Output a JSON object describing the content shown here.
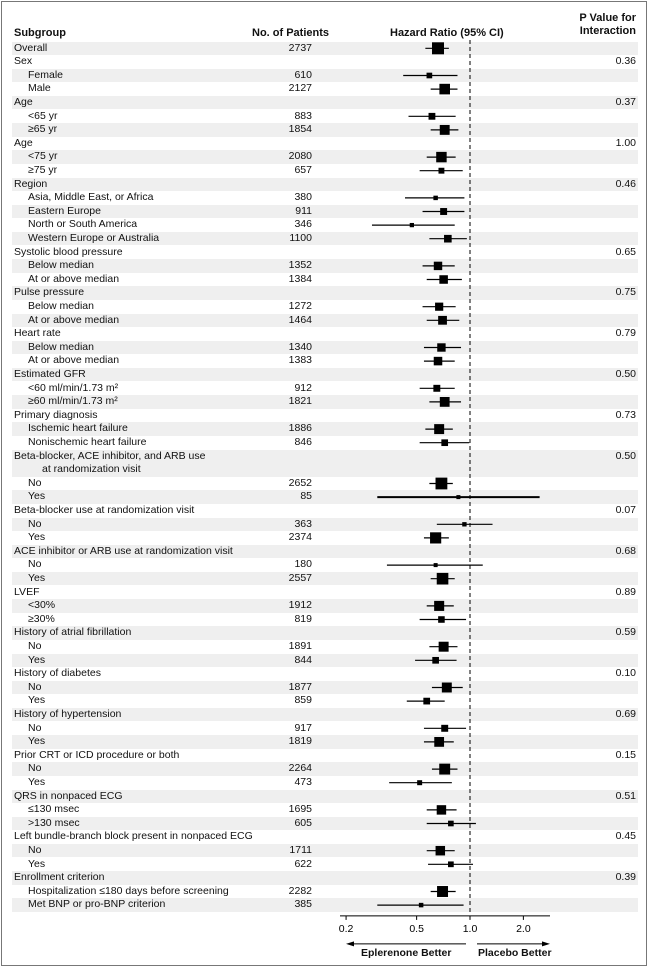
{
  "header": {
    "subgroup": "Subgroup",
    "patients": "No. of Patients",
    "hr": "Hazard Ratio (95% CI)",
    "p_line1": "P Value for",
    "p_line2": "Interaction"
  },
  "chart_data": {
    "type": "forest",
    "xscale": "log",
    "xticks": [
      "0.2",
      "0.5",
      "1.0",
      "2.0"
    ],
    "xtick_values": [
      0.2,
      0.5,
      1.0,
      2.0
    ],
    "reference_line": 1.0,
    "left_label": "Eplerenone Better",
    "right_label": "Placebo Better",
    "rows": [
      {
        "label": "Overall",
        "indent": 0,
        "n": "2737",
        "hr": 0.66,
        "lo": 0.56,
        "hi": 0.76
      },
      {
        "label": "Sex",
        "indent": 0,
        "p": "0.36"
      },
      {
        "label": "Female",
        "indent": 1,
        "n": "610",
        "hr": 0.59,
        "lo": 0.42,
        "hi": 0.85
      },
      {
        "label": "Male",
        "indent": 1,
        "n": "2127",
        "hr": 0.72,
        "lo": 0.6,
        "hi": 0.85
      },
      {
        "label": "Age",
        "indent": 0,
        "p": "0.37"
      },
      {
        "label": "<65 yr",
        "indent": 1,
        "n": "883",
        "hr": 0.61,
        "lo": 0.45,
        "hi": 0.83
      },
      {
        "label": "≥65 yr",
        "indent": 1,
        "n": "1854",
        "hr": 0.72,
        "lo": 0.6,
        "hi": 0.86
      },
      {
        "label": "Age",
        "indent": 0,
        "p": "1.00"
      },
      {
        "label": "<75 yr",
        "indent": 1,
        "n": "2080",
        "hr": 0.69,
        "lo": 0.57,
        "hi": 0.83
      },
      {
        "label": "≥75 yr",
        "indent": 1,
        "n": "657",
        "hr": 0.69,
        "lo": 0.52,
        "hi": 0.91
      },
      {
        "label": "Region",
        "indent": 0,
        "p": "0.46"
      },
      {
        "label": "Asia, Middle East, or Africa",
        "indent": 1,
        "n": "380",
        "hr": 0.64,
        "lo": 0.43,
        "hi": 0.93
      },
      {
        "label": "Eastern Europe",
        "indent": 1,
        "n": "911",
        "hr": 0.71,
        "lo": 0.54,
        "hi": 0.93
      },
      {
        "label": "North or South America",
        "indent": 1,
        "n": "346",
        "hr": 0.47,
        "lo": 0.28,
        "hi": 0.82
      },
      {
        "label": "Western Europe or Australia",
        "indent": 1,
        "n": "1100",
        "hr": 0.75,
        "lo": 0.59,
        "hi": 0.96
      },
      {
        "label": "Systolic blood pressure",
        "indent": 0,
        "p": "0.65"
      },
      {
        "label": "Below median",
        "indent": 1,
        "n": "1352",
        "hr": 0.66,
        "lo": 0.54,
        "hi": 0.82
      },
      {
        "label": "At or above median",
        "indent": 1,
        "n": "1384",
        "hr": 0.71,
        "lo": 0.57,
        "hi": 0.9
      },
      {
        "label": "Pulse pressure",
        "indent": 0,
        "p": "0.75"
      },
      {
        "label": "Below median",
        "indent": 1,
        "n": "1272",
        "hr": 0.67,
        "lo": 0.54,
        "hi": 0.83
      },
      {
        "label": "At or above median",
        "indent": 1,
        "n": "1464",
        "hr": 0.7,
        "lo": 0.57,
        "hi": 0.87
      },
      {
        "label": "Heart rate",
        "indent": 0,
        "p": "0.79"
      },
      {
        "label": "Below median",
        "indent": 1,
        "n": "1340",
        "hr": 0.69,
        "lo": 0.55,
        "hi": 0.89
      },
      {
        "label": "At or above median",
        "indent": 1,
        "n": "1383",
        "hr": 0.66,
        "lo": 0.55,
        "hi": 0.82
      },
      {
        "label": "Estimated GFR",
        "indent": 0,
        "p": "0.50"
      },
      {
        "label": "<60 ml/min/1.73 m²",
        "indent": 1,
        "n": "912",
        "hr": 0.65,
        "lo": 0.52,
        "hi": 0.82
      },
      {
        "label": "≥60 ml/min/1.73 m²",
        "indent": 1,
        "n": "1821",
        "hr": 0.72,
        "lo": 0.59,
        "hi": 0.89
      },
      {
        "label": "Primary diagnosis",
        "indent": 0,
        "p": "0.73"
      },
      {
        "label": "Ischemic heart failure",
        "indent": 1,
        "n": "1886",
        "hr": 0.67,
        "lo": 0.56,
        "hi": 0.8
      },
      {
        "label": "Nonischemic heart failure",
        "indent": 1,
        "n": "846",
        "hr": 0.72,
        "lo": 0.52,
        "hi": 0.99
      },
      {
        "label": "Beta-blocker, ACE inhibitor, and ARB use",
        "label2": "at randomization visit",
        "indent": 0,
        "p": "0.50"
      },
      {
        "label": "No",
        "indent": 1,
        "n": "2652",
        "hr": 0.69,
        "lo": 0.59,
        "hi": 0.8
      },
      {
        "label": "Yes",
        "indent": 1,
        "n": "85",
        "hr": 0.86,
        "lo": 0.3,
        "hi": 2.47
      },
      {
        "label": "Beta-blocker use at randomization visit",
        "indent": 0,
        "p": "0.07"
      },
      {
        "label": "No",
        "indent": 1,
        "n": "363",
        "hr": 0.93,
        "lo": 0.65,
        "hi": 1.34
      },
      {
        "label": "Yes",
        "indent": 1,
        "n": "2374",
        "hr": 0.64,
        "lo": 0.55,
        "hi": 0.76
      },
      {
        "label": "ACE inhibitor or ARB use at randomization visit",
        "indent": 0,
        "p": "0.68"
      },
      {
        "label": "No",
        "indent": 1,
        "n": "180",
        "hr": 0.64,
        "lo": 0.34,
        "hi": 1.18
      },
      {
        "label": "Yes",
        "indent": 1,
        "n": "2557",
        "hr": 0.7,
        "lo": 0.6,
        "hi": 0.82
      },
      {
        "label": "LVEF",
        "indent": 0,
        "p": "0.89"
      },
      {
        "label": "<30%",
        "indent": 1,
        "n": "1912",
        "hr": 0.67,
        "lo": 0.57,
        "hi": 0.81
      },
      {
        "label": "≥30%",
        "indent": 1,
        "n": "819",
        "hr": 0.69,
        "lo": 0.52,
        "hi": 0.95
      },
      {
        "label": "History of atrial fibrillation",
        "indent": 0,
        "p": "0.59"
      },
      {
        "label": "No",
        "indent": 1,
        "n": "1891",
        "hr": 0.71,
        "lo": 0.59,
        "hi": 0.85
      },
      {
        "label": "Yes",
        "indent": 1,
        "n": "844",
        "hr": 0.64,
        "lo": 0.49,
        "hi": 0.84
      },
      {
        "label": "History of diabetes",
        "indent": 0,
        "p": "0.10"
      },
      {
        "label": "No",
        "indent": 1,
        "n": "1877",
        "hr": 0.74,
        "lo": 0.61,
        "hi": 0.91
      },
      {
        "label": "Yes",
        "indent": 1,
        "n": "859",
        "hr": 0.57,
        "lo": 0.44,
        "hi": 0.72
      },
      {
        "label": "History of hypertension",
        "indent": 0,
        "p": "0.69"
      },
      {
        "label": "No",
        "indent": 1,
        "n": "917",
        "hr": 0.72,
        "lo": 0.55,
        "hi": 0.95
      },
      {
        "label": "Yes",
        "indent": 1,
        "n": "1819",
        "hr": 0.67,
        "lo": 0.55,
        "hi": 0.81
      },
      {
        "label": "Prior CRT or ICD procedure or both",
        "indent": 0,
        "p": "0.15"
      },
      {
        "label": "No",
        "indent": 1,
        "n": "2264",
        "hr": 0.72,
        "lo": 0.61,
        "hi": 0.85
      },
      {
        "label": "Yes",
        "indent": 1,
        "n": "473",
        "hr": 0.52,
        "lo": 0.35,
        "hi": 0.79
      },
      {
        "label": "QRS in nonpaced ECG",
        "indent": 0,
        "p": "0.51"
      },
      {
        "label": "≤130 msec",
        "indent": 1,
        "n": "1695",
        "hr": 0.69,
        "lo": 0.57,
        "hi": 0.84
      },
      {
        "label": ">130 msec",
        "indent": 1,
        "n": "605",
        "hr": 0.78,
        "lo": 0.57,
        "hi": 1.08
      },
      {
        "label": "Left bundle-branch block present in nonpaced ECG",
        "indent": 0,
        "p": "0.45"
      },
      {
        "label": "No",
        "indent": 1,
        "n": "1711",
        "hr": 0.68,
        "lo": 0.57,
        "hi": 0.82
      },
      {
        "label": "Yes",
        "indent": 1,
        "n": "622",
        "hr": 0.78,
        "lo": 0.58,
        "hi": 1.04
      },
      {
        "label": "Enrollment criterion",
        "indent": 0,
        "p": "0.39"
      },
      {
        "label": "Hospitalization ≤180 days before screening",
        "indent": 1,
        "n": "2282",
        "hr": 0.7,
        "lo": 0.6,
        "hi": 0.83
      },
      {
        "label": "Met BNP or pro-BNP criterion",
        "indent": 1,
        "n": "385",
        "hr": 0.53,
        "lo": 0.3,
        "hi": 0.92
      }
    ]
  }
}
